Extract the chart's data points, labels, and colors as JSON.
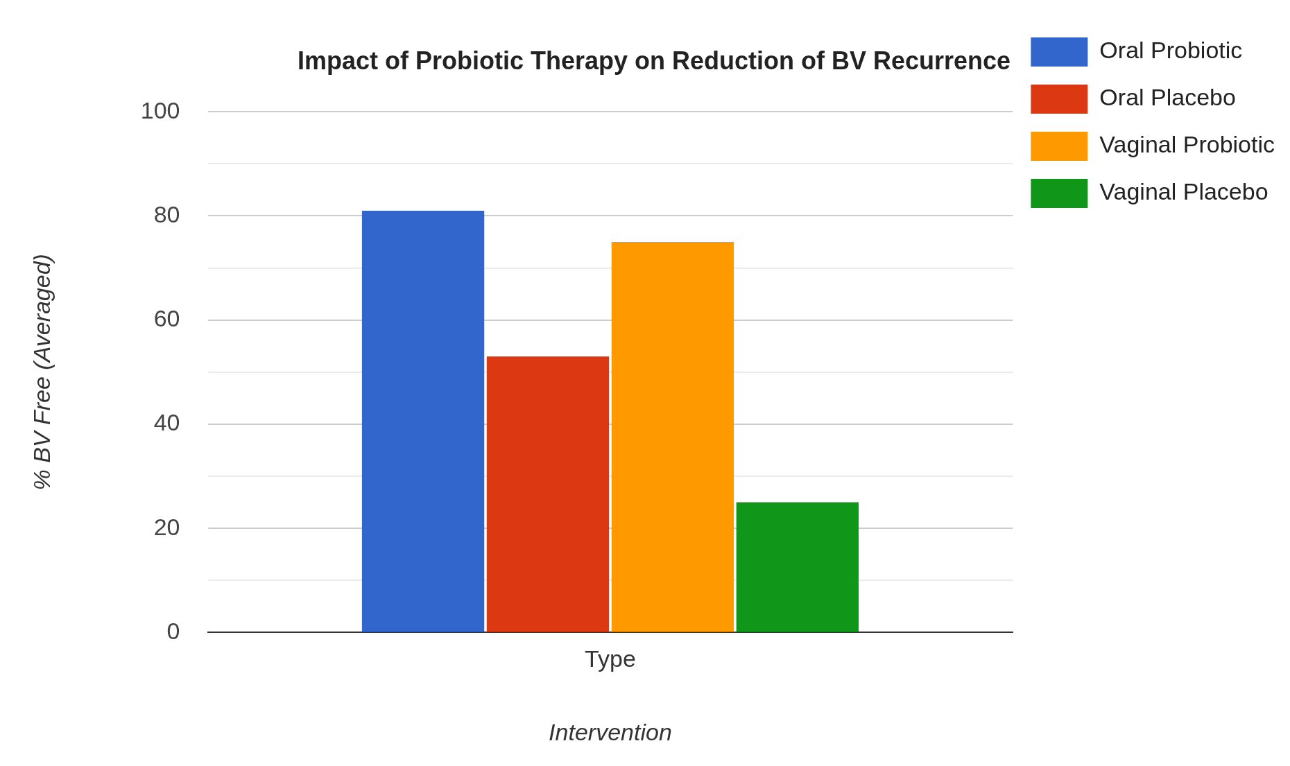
{
  "chart_data": {
    "type": "bar",
    "title": "Impact of Probiotic Therapy on Reduction of BV Recurrence",
    "xlabel": "Intervention",
    "ylabel": "% BV Free (Averaged)",
    "categories": [
      "Type"
    ],
    "series": [
      {
        "name": "Oral Probiotic",
        "color": "#3366cc",
        "values": [
          81
        ]
      },
      {
        "name": "Oral Placebo",
        "color": "#dc3912",
        "values": [
          53
        ]
      },
      {
        "name": "Vaginal Probiotic",
        "color": "#ff9900",
        "values": [
          75
        ]
      },
      {
        "name": "Vaginal Placebo",
        "color": "#109618",
        "values": [
          25
        ]
      }
    ],
    "ylim": [
      0,
      100
    ],
    "yticks": [
      0,
      {
        "value": 10,
        "label": null
      },
      20,
      {
        "value": 30,
        "label": null
      },
      40,
      {
        "value": 50,
        "label": null
      },
      60,
      {
        "value": 70,
        "label": null
      },
      80,
      {
        "value": 90,
        "label": null
      },
      100
    ],
    "grid": "y",
    "legend": "right"
  }
}
